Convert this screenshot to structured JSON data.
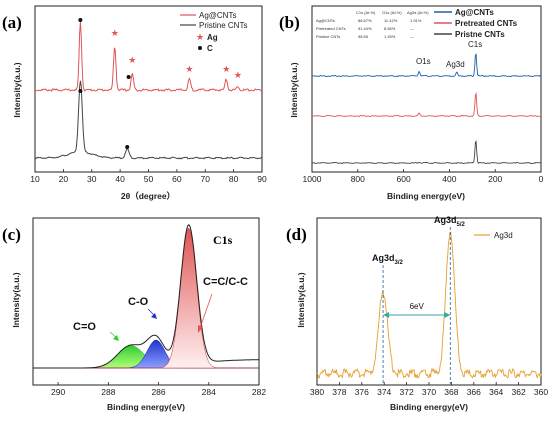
{
  "colors": {
    "red": "#e05555",
    "black": "#444444",
    "blue": "#1f5fa8",
    "orange": "#e6a030",
    "green": "#2ea84a",
    "teal": "#3aa6a8"
  },
  "panels": [
    {
      "id": "a",
      "label": "(a)",
      "xlabel": "2θ（degree）",
      "ylabel": "Intensity(a.u.)",
      "xlim": [
        10,
        90
      ],
      "xticks": [
        "10",
        "20",
        "30",
        "40",
        "50",
        "60",
        "70",
        "80",
        "90"
      ],
      "legend": [
        "Ag@CNTs",
        "Pristine CNTs",
        "Ag",
        "C"
      ]
    },
    {
      "id": "b",
      "label": "(b)",
      "xlabel": "Binding energy(eV)",
      "ylabel": "Intensity(a.u.)",
      "xlim": [
        1000,
        0
      ],
      "xticks": [
        "1000",
        "800",
        "600",
        "400",
        "200",
        "0"
      ],
      "legend": [
        "Ag@CNTs",
        "Pretreated CNTs",
        "Pristne CNTs"
      ],
      "annotations": [
        "O1s",
        "Ag3d",
        "C1s"
      ],
      "table": {
        "headers": [
          "",
          "C1s (At.%)",
          "O1s (At.%)",
          "Ag3d (At.%)"
        ],
        "rows": [
          [
            "Ag@CNTs",
            "86.67%",
            "11.42%",
            "1.91%"
          ],
          [
            "Pretreated CNTs",
            "91.44%",
            "8.56%",
            "—"
          ],
          [
            "Pristine CNTs",
            "98.55",
            "1.45%",
            "—"
          ]
        ]
      }
    },
    {
      "id": "c",
      "label": "(c)",
      "title": "C1s",
      "xlabel": "Binding energy(eV)",
      "ylabel": "Intensity(a.u.)",
      "xlim": [
        291,
        282
      ],
      "xticks": [
        "290",
        "288",
        "286",
        "284",
        "282"
      ],
      "annotations": [
        "C=C/C-C",
        "C-O",
        "C=O"
      ]
    },
    {
      "id": "d",
      "label": "(d)",
      "xlabel": "Binding energy(eV)",
      "ylabel": "Intensity(a.u.)",
      "xlim": [
        380,
        360
      ],
      "xticks": [
        "380",
        "378",
        "376",
        "374",
        "372",
        "370",
        "368",
        "366",
        "364",
        "362",
        "360"
      ],
      "legend": [
        "Ag3d"
      ],
      "peak_labels": [
        "Ag3d",
        "3/2",
        "Ag3d",
        "5/2"
      ],
      "spacing_label": "6eV"
    }
  ],
  "chart_data": [
    {
      "type": "line",
      "panel": "a",
      "series": [
        {
          "name": "Ag@CNTs",
          "peaks": [
            {
              "x": 26,
              "h": 0.9
            },
            {
              "x": 38.1,
              "h": 0.58
            },
            {
              "x": 44.3,
              "h": 0.22
            },
            {
              "x": 64.4,
              "h": 0.15
            },
            {
              "x": 77.4,
              "h": 0.15
            },
            {
              "x": 81.5,
              "h": 0.05
            }
          ]
        },
        {
          "name": "Pristine CNTs",
          "peaks": [
            {
              "x": 26,
              "h": 0.95
            },
            {
              "x": 42.5,
              "h": 0.12
            }
          ]
        }
      ]
    },
    {
      "type": "line",
      "panel": "b",
      "series": [
        {
          "name": "Ag@CNTs",
          "peaks": [
            {
              "x": 532,
              "h": 0.2
            },
            {
              "x": 368,
              "h": 0.15
            },
            {
              "x": 284.8,
              "h": 1.0
            }
          ]
        },
        {
          "name": "Pretreated CNTs",
          "peaks": [
            {
              "x": 532,
              "h": 0.12
            },
            {
              "x": 284.8,
              "h": 1.0
            }
          ]
        },
        {
          "name": "Pristne CNTs",
          "peaks": [
            {
              "x": 532,
              "h": 0.04
            },
            {
              "x": 284.8,
              "h": 1.0
            }
          ]
        }
      ]
    },
    {
      "type": "area",
      "panel": "c",
      "components": [
        {
          "name": "C=C/C-C",
          "center": 284.8,
          "height": 1.0
        },
        {
          "name": "C-O",
          "center": 286.1,
          "height": 0.2
        },
        {
          "name": "C=O",
          "center": 287.1,
          "height": 0.16
        }
      ]
    },
    {
      "type": "line",
      "panel": "d",
      "series": [
        {
          "name": "Ag3d",
          "peaks": [
            {
              "x": 374.1,
              "h": 0.55
            },
            {
              "x": 368.1,
              "h": 0.95
            }
          ]
        }
      ]
    }
  ]
}
